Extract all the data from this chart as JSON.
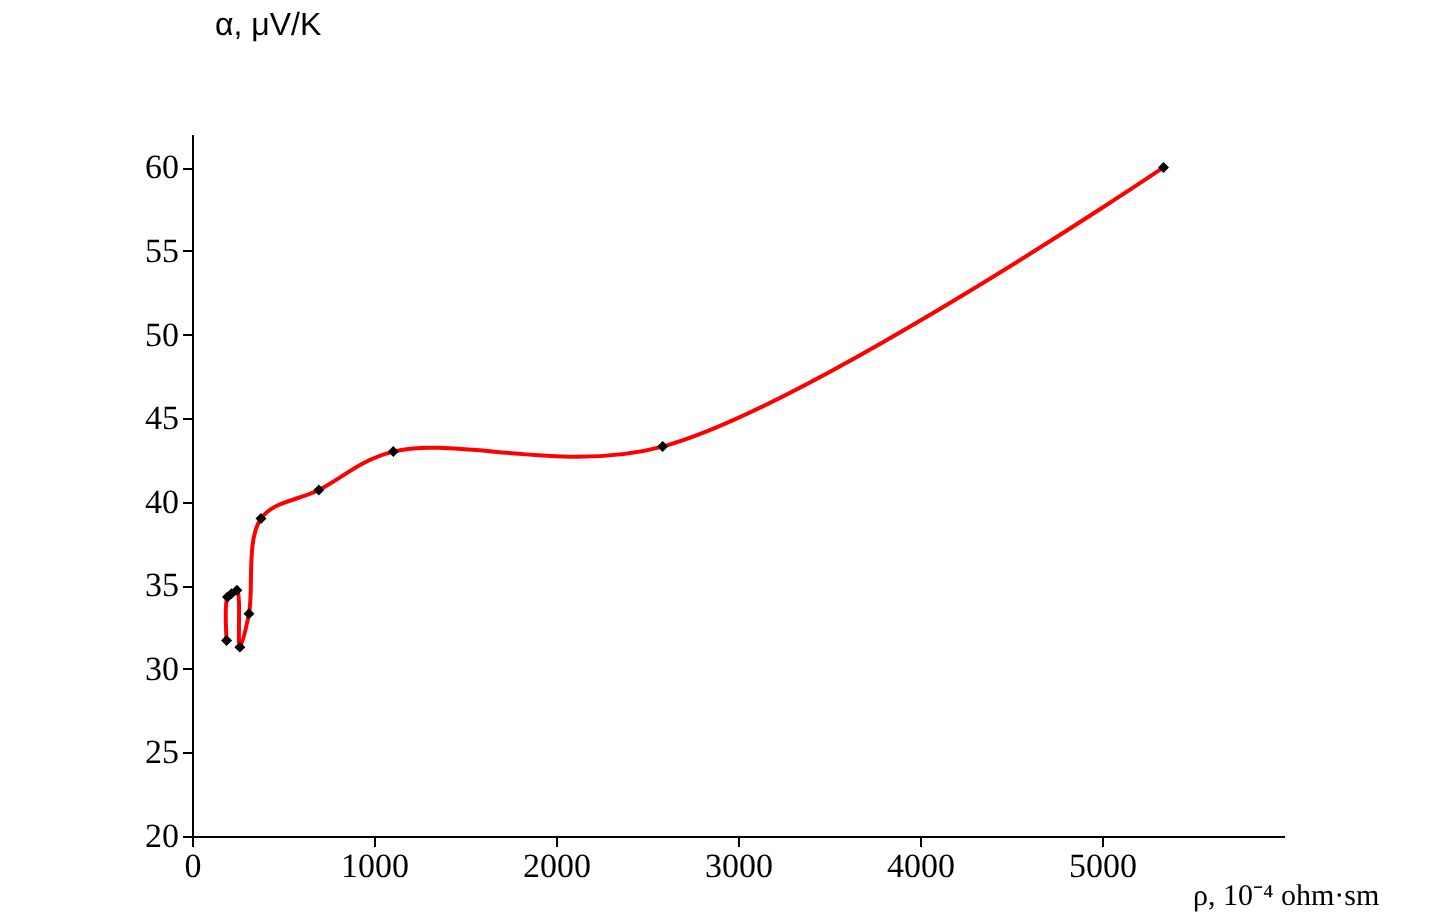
{
  "chart_data": {
    "type": "line",
    "xlabel": "ρ, 10⁻⁴ ohm·sm",
    "ylabel": "α, μV/K",
    "x": [
      190,
      195,
      217,
      247,
      263,
      313,
      379,
      697,
      1106,
      2586,
      5338
    ],
    "series": [
      {
        "color": "#ff0000",
        "values": [
          31.7,
          34.3,
          34.5,
          34.7,
          31.3,
          33.3,
          39.0,
          40.7,
          43.0,
          43.3,
          60.0
        ]
      }
    ],
    "marker": "diamond",
    "line_style": "solid",
    "grid": false,
    "legend": false,
    "xlim": [
      0,
      6000
    ],
    "xticks": [
      0,
      1000,
      2000,
      3000,
      4000,
      5000
    ],
    "ylim": [
      20,
      62
    ],
    "yticks": [
      20,
      25,
      30,
      35,
      40,
      45,
      50,
      55,
      60
    ]
  }
}
